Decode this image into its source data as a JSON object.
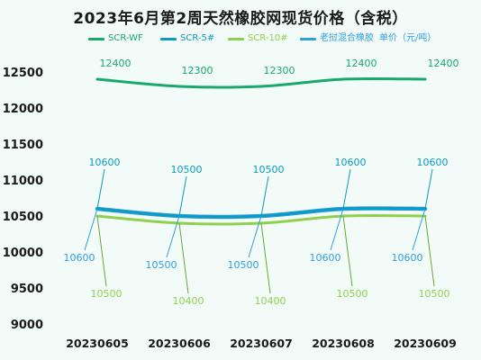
{
  "title": "2023年6月第2周天然橡胶网现货价格（含税）",
  "colors": {
    "background": "#f2fbf7",
    "scr_wf": "#1aa86f",
    "scr_5": "#0e9ac2",
    "scr_10": "#8fd14f",
    "mixed": "#2f9fe0",
    "grid": "#cfe8dd"
  },
  "chart_data": {
    "type": "line",
    "title": "2023年6月第2周天然橡胶网现货价格（含税）",
    "xlabel": "",
    "ylabel": "",
    "categories": [
      "20230605",
      "20230606",
      "20230607",
      "20230608",
      "20230609"
    ],
    "ylim": [
      9000,
      12500
    ],
    "yticks": [
      9000,
      9500,
      10000,
      10500,
      11000,
      11500,
      12000,
      12500
    ],
    "grid": false,
    "legend_position": "top",
    "series": [
      {
        "name": "SCR-WF",
        "color": "#1aa86f",
        "values": [
          12400,
          12300,
          12300,
          12400,
          12400
        ]
      },
      {
        "name": "SCR-5#",
        "color": "#0e9ac2",
        "values": [
          10600,
          10500,
          10500,
          10600,
          10600
        ]
      },
      {
        "name": "SCR-10#",
        "color": "#8fd14f",
        "values": [
          10500,
          10400,
          10400,
          10500,
          10500
        ]
      },
      {
        "name": "老挝混合橡胶",
        "color": "#2f9fe0",
        "values": [
          10600,
          10500,
          10500,
          10600,
          10600
        ]
      }
    ],
    "legend_note": "单价（元/吨）"
  }
}
